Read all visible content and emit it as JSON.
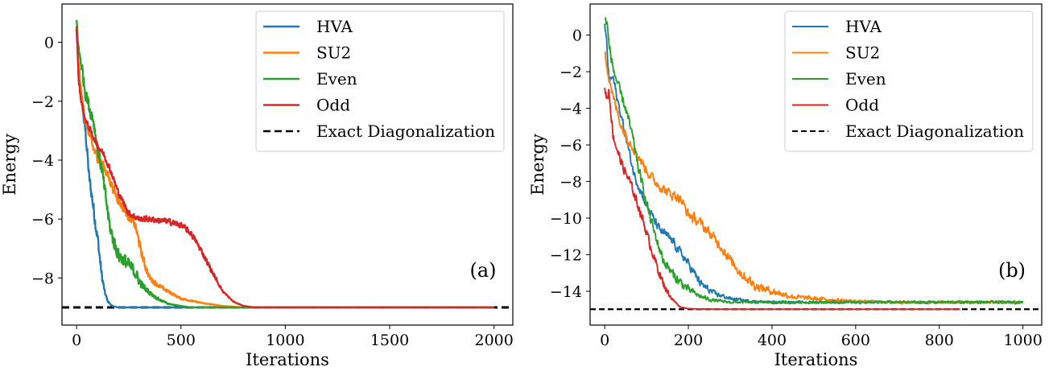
{
  "chart_data": [
    {
      "type": "line",
      "panel_label": "(a)",
      "xlabel": "Iterations",
      "ylabel": "Energy",
      "xlim": [
        -70,
        2090
      ],
      "ylim": [
        -9.6,
        1.3
      ],
      "xticks": [
        0,
        500,
        1000,
        1500,
        2000
      ],
      "yticks": [
        0,
        -2,
        -4,
        -6,
        -8
      ],
      "grid": false,
      "legend_position": "top-right",
      "reference": {
        "name": "Exact Diagonalization",
        "y": -9.0,
        "style": "dashed",
        "color": "#000000"
      },
      "series": [
        {
          "name": "HVA",
          "color": "#1f77b4",
          "noise": 0.35,
          "x": [
            0,
            10,
            20,
            30,
            45,
            60,
            75,
            90,
            105,
            120,
            135,
            150,
            170,
            200,
            260,
            350,
            2000
          ],
          "y": [
            0.4,
            -1.2,
            -1.6,
            -2.3,
            -3.2,
            -4.6,
            -5.3,
            -6.1,
            -6.9,
            -7.9,
            -8.5,
            -8.8,
            -8.95,
            -9.0,
            -9.0,
            -9.0,
            -9.0
          ]
        },
        {
          "name": "SU2",
          "color": "#ff7f0e",
          "noise": 0.22,
          "x": [
            0,
            10,
            20,
            40,
            60,
            80,
            100,
            130,
            160,
            190,
            220,
            250,
            280,
            300,
            320,
            350,
            400,
            450,
            500,
            600,
            700,
            800,
            900,
            2000
          ],
          "y": [
            0.6,
            -0.8,
            -1.6,
            -2.6,
            -3.1,
            -3.6,
            -3.9,
            -4.2,
            -4.7,
            -5.2,
            -5.6,
            -5.9,
            -6.2,
            -6.8,
            -7.4,
            -8.0,
            -8.3,
            -8.5,
            -8.7,
            -8.85,
            -8.95,
            -9.0,
            -9.0,
            -9.0
          ]
        },
        {
          "name": "Even",
          "color": "#2ca02c",
          "noise": 0.35,
          "x": [
            0,
            10,
            20,
            40,
            60,
            80,
            100,
            120,
            140,
            160,
            180,
            200,
            240,
            280,
            300,
            320,
            350,
            400,
            450,
            500,
            550,
            600,
            700,
            2000
          ],
          "y": [
            0.7,
            -0.3,
            -0.6,
            -1.6,
            -2.2,
            -2.6,
            -3.6,
            -4.3,
            -5.3,
            -6.3,
            -6.8,
            -7.2,
            -7.5,
            -7.8,
            -8.1,
            -8.3,
            -8.5,
            -8.75,
            -8.9,
            -8.95,
            -9.0,
            -9.0,
            -9.0,
            -9.0
          ]
        },
        {
          "name": "Odd",
          "color": "#d62728",
          "noise": 0.14,
          "x": [
            0,
            10,
            20,
            40,
            60,
            80,
            100,
            130,
            160,
            200,
            250,
            300,
            350,
            400,
            450,
            500,
            550,
            600,
            650,
            700,
            750,
            800,
            850,
            900,
            2000
          ],
          "y": [
            0.6,
            -1.3,
            -1.9,
            -2.6,
            -2.9,
            -3.2,
            -3.5,
            -3.8,
            -4.3,
            -5.1,
            -5.8,
            -6.0,
            -6.0,
            -6.05,
            -6.1,
            -6.2,
            -6.5,
            -7.1,
            -7.8,
            -8.45,
            -8.8,
            -8.95,
            -9.0,
            -9.0,
            -9.0
          ]
        }
      ]
    },
    {
      "type": "line",
      "panel_label": "(b)",
      "xlabel": "Iterations",
      "ylabel": "Energy",
      "xlim": [
        -35,
        1045
      ],
      "ylim": [
        -15.85,
        1.7
      ],
      "xticks": [
        0,
        200,
        400,
        600,
        800,
        1000
      ],
      "yticks": [
        0,
        -2,
        -4,
        -6,
        -8,
        -10,
        -12,
        -14
      ],
      "grid": false,
      "legend_position": "top-right",
      "reference": {
        "name": "Exact Diagonalization",
        "y": -14.98,
        "style": "dashed",
        "color": "#000000"
      },
      "series": [
        {
          "name": "HVA",
          "color": "#1f77b4",
          "noise": 0.35,
          "x": [
            0,
            5,
            10,
            20,
            30,
            50,
            70,
            100,
            130,
            160,
            200,
            230,
            260,
            300,
            350,
            400,
            500,
            700,
            1000
          ],
          "y": [
            0.6,
            -0.5,
            -2.5,
            -2.3,
            -3.5,
            -5.5,
            -7.6,
            -9.3,
            -10.6,
            -11.2,
            -12.5,
            -13.6,
            -14.1,
            -14.4,
            -14.55,
            -14.6,
            -14.6,
            -14.6,
            -14.6
          ]
        },
        {
          "name": "SU2",
          "color": "#ff7f0e",
          "noise": 0.4,
          "x": [
            0,
            10,
            20,
            40,
            60,
            80,
            100,
            120,
            150,
            180,
            200,
            230,
            250,
            280,
            300,
            330,
            360,
            400,
            450,
            500,
            600,
            700,
            1000
          ],
          "y": [
            -1.0,
            -2.2,
            -3.4,
            -5.0,
            -5.8,
            -6.6,
            -7.4,
            -8.0,
            -8.6,
            -8.9,
            -9.8,
            -10.3,
            -10.8,
            -11.6,
            -12.3,
            -13.1,
            -13.7,
            -14.0,
            -14.3,
            -14.4,
            -14.55,
            -14.6,
            -14.6
          ]
        },
        {
          "name": "Even",
          "color": "#2ca02c",
          "noise": 0.4,
          "x": [
            0,
            5,
            10,
            20,
            35,
            50,
            65,
            80,
            100,
            120,
            140,
            160,
            180,
            200,
            230,
            260,
            300,
            400,
            600,
            1000
          ],
          "y": [
            0.7,
            0.8,
            -0.5,
            -1.8,
            -3.0,
            -4.0,
            -5.4,
            -7.2,
            -9.2,
            -10.9,
            -12.3,
            -13.0,
            -13.5,
            -13.9,
            -14.3,
            -14.5,
            -14.6,
            -14.6,
            -14.6,
            -14.6
          ]
        },
        {
          "name": "Odd",
          "color": "#d62728",
          "noise": 0.35,
          "x": [
            0,
            5,
            10,
            20,
            30,
            45,
            60,
            75,
            90,
            105,
            120,
            140,
            160,
            180,
            200,
            250,
            400,
            600,
            850
          ],
          "y": [
            -2.8,
            -3.5,
            -3.0,
            -5.5,
            -6.3,
            -7.3,
            -8.0,
            -9.0,
            -10.0,
            -11.2,
            -12.3,
            -13.6,
            -14.4,
            -14.85,
            -14.95,
            -14.98,
            -14.98,
            -14.98,
            -14.98
          ]
        }
      ]
    }
  ],
  "legend_labels": [
    "HVA",
    "SU2",
    "Even",
    "Odd",
    "Exact Diagonalization"
  ]
}
